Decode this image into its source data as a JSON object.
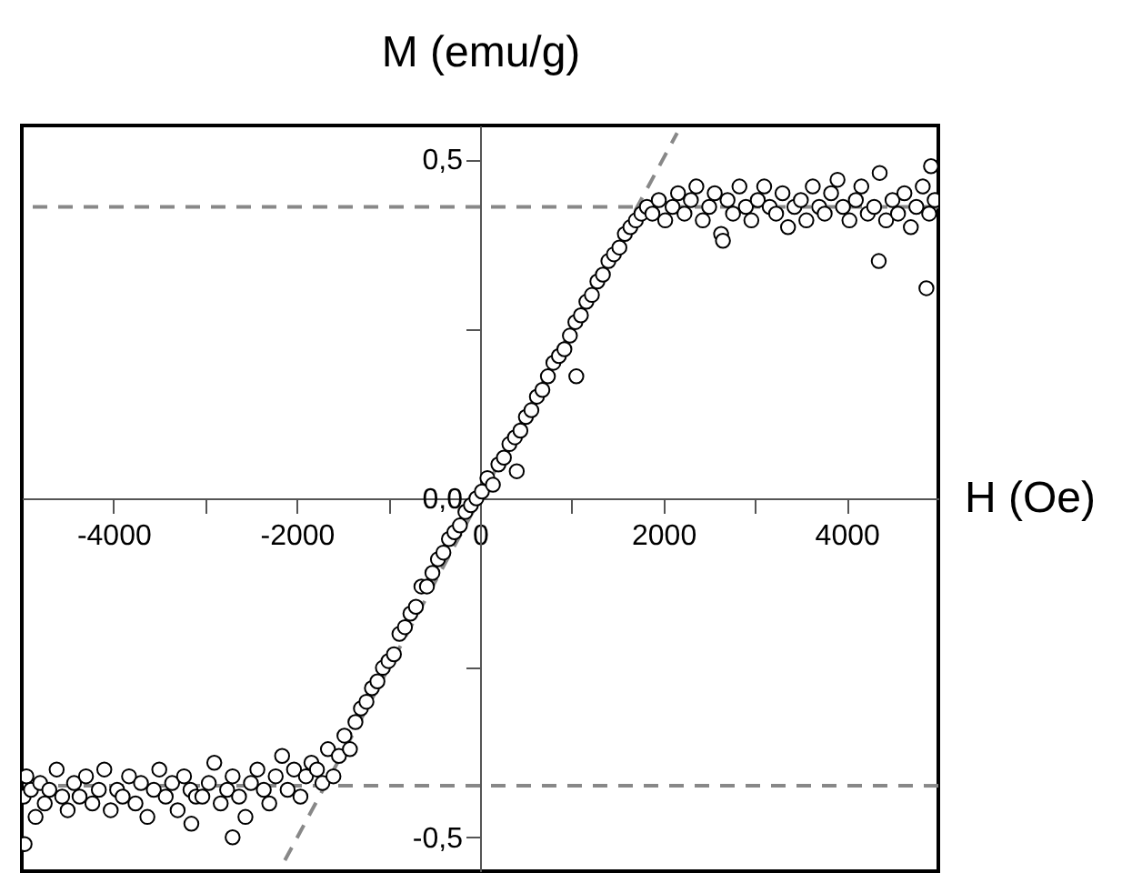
{
  "chart_data": {
    "type": "scatter",
    "xlabel": "H (Oe)",
    "ylabel": "M (emu/g)",
    "xlim": [
      -5000,
      5000
    ],
    "ylim": [
      -0.55,
      0.55
    ],
    "xticks": [
      -4000,
      {
        "value": -3000,
        "label": null
      },
      -2000,
      {
        "value": -1000,
        "label": null
      },
      0,
      {
        "value": 1000,
        "label": null
      },
      2000,
      {
        "value": 3000,
        "label": null
      },
      4000
    ],
    "yticks": [
      {
        "value": 0.5,
        "label": "0,5"
      },
      {
        "value": 0.25,
        "label": null
      },
      {
        "value": 0,
        "label": "0,0"
      },
      {
        "value": -0.25,
        "label": null
      },
      {
        "value": -0.5,
        "label": "-0,5"
      }
    ],
    "series": [
      {
        "marker": "circle",
        "color": "#000000",
        "x": [
          -4980,
          -4970,
          -4950,
          -4900,
          -4850,
          -4800,
          -4750,
          -4700,
          -4620,
          -4560,
          -4500,
          -4430,
          -4370,
          -4300,
          -4230,
          -4160,
          -4100,
          -4030,
          -3960,
          -3900,
          -3830,
          -3760,
          -3700,
          -3630,
          -3560,
          -3500,
          -3430,
          -3360,
          -3300,
          -3230,
          -3160,
          -3150,
          -3100,
          -3030,
          -2960,
          -2900,
          -2830,
          -2760,
          -2700,
          -2700,
          -2630,
          -2560,
          -2500,
          -2430,
          -2360,
          -2300,
          -2230,
          -2160,
          -2100,
          -2030,
          -1960,
          -1900,
          -1840,
          -1780,
          -1720,
          -1660,
          -1600,
          -1540,
          -1480,
          -1420,
          -1360,
          -1300,
          -1240,
          -1180,
          -1120,
          -1060,
          -1000,
          -940,
          -880,
          -820,
          -760,
          -700,
          -640,
          -580,
          -520,
          -460,
          -400,
          -340,
          -280,
          -220,
          -160,
          -100,
          -40,
          20,
          80,
          140,
          200,
          260,
          320,
          380,
          400,
          440,
          500,
          560,
          620,
          680,
          740,
          800,
          860,
          920,
          980,
          1040,
          1050,
          1100,
          1160,
          1220,
          1280,
          1340,
          1400,
          1460,
          1520,
          1580,
          1640,
          1700,
          1760,
          1820,
          1880,
          1950,
          2020,
          2100,
          2160,
          2230,
          2300,
          2360,
          2430,
          2500,
          2560,
          2630,
          2650,
          2700,
          2760,
          2830,
          2900,
          2960,
          3030,
          3100,
          3160,
          3230,
          3300,
          3360,
          3430,
          3500,
          3560,
          3630,
          3700,
          3760,
          3830,
          3900,
          3960,
          4030,
          4100,
          4160,
          4230,
          4300,
          4350,
          4360,
          4430,
          4500,
          4560,
          4630,
          4700,
          4760,
          4830,
          4870,
          4900,
          4920,
          4960
        ],
        "values": [
          -0.44,
          -0.51,
          -0.41,
          -0.43,
          -0.47,
          -0.42,
          -0.45,
          -0.43,
          -0.4,
          -0.44,
          -0.46,
          -0.42,
          -0.44,
          -0.41,
          -0.45,
          -0.43,
          -0.4,
          -0.46,
          -0.43,
          -0.44,
          -0.41,
          -0.45,
          -0.42,
          -0.47,
          -0.43,
          -0.4,
          -0.44,
          -0.42,
          -0.46,
          -0.41,
          -0.43,
          -0.48,
          -0.44,
          -0.44,
          -0.42,
          -0.39,
          -0.45,
          -0.43,
          -0.41,
          -0.5,
          -0.44,
          -0.47,
          -0.42,
          -0.4,
          -0.43,
          -0.45,
          -0.41,
          -0.38,
          -0.43,
          -0.4,
          -0.44,
          -0.41,
          -0.39,
          -0.4,
          -0.42,
          -0.37,
          -0.41,
          -0.38,
          -0.35,
          -0.37,
          -0.33,
          -0.31,
          -0.3,
          -0.28,
          -0.27,
          -0.25,
          -0.24,
          -0.23,
          -0.2,
          -0.19,
          -0.17,
          -0.16,
          -0.13,
          -0.13,
          -0.11,
          -0.09,
          -0.08,
          -0.06,
          -0.05,
          -0.04,
          -0.02,
          -0.01,
          0.0,
          0.01,
          0.03,
          0.02,
          0.05,
          0.06,
          0.08,
          0.09,
          0.04,
          0.1,
          0.12,
          0.13,
          0.15,
          0.16,
          0.18,
          0.2,
          0.21,
          0.22,
          0.24,
          0.26,
          0.18,
          0.27,
          0.29,
          0.3,
          0.32,
          0.33,
          0.35,
          0.36,
          0.37,
          0.39,
          0.4,
          0.41,
          0.42,
          0.43,
          0.42,
          0.44,
          0.41,
          0.43,
          0.45,
          0.42,
          0.44,
          0.46,
          0.41,
          0.43,
          0.45,
          0.39,
          0.38,
          0.44,
          0.42,
          0.46,
          0.43,
          0.41,
          0.44,
          0.46,
          0.43,
          0.42,
          0.45,
          0.4,
          0.43,
          0.44,
          0.41,
          0.46,
          0.43,
          0.42,
          0.45,
          0.47,
          0.43,
          0.41,
          0.44,
          0.46,
          0.42,
          0.43,
          0.35,
          0.48,
          0.41,
          0.44,
          0.42,
          0.45,
          0.4,
          0.43,
          0.46,
          0.31,
          0.42,
          0.49,
          0.44
        ]
      },
      {
        "type": "line",
        "color": "#888888",
        "line_style": "dashed",
        "x": [
          -2130,
          2150
        ],
        "values": [
          -0.534,
          0.539
        ]
      }
    ],
    "ref_lines": [
      {
        "axis": "y",
        "value": 0.43,
        "color": "#888888",
        "line_style": "dashed"
      },
      {
        "axis": "y",
        "value": -0.424,
        "color": "#888888",
        "line_style": "dashed"
      }
    ]
  }
}
